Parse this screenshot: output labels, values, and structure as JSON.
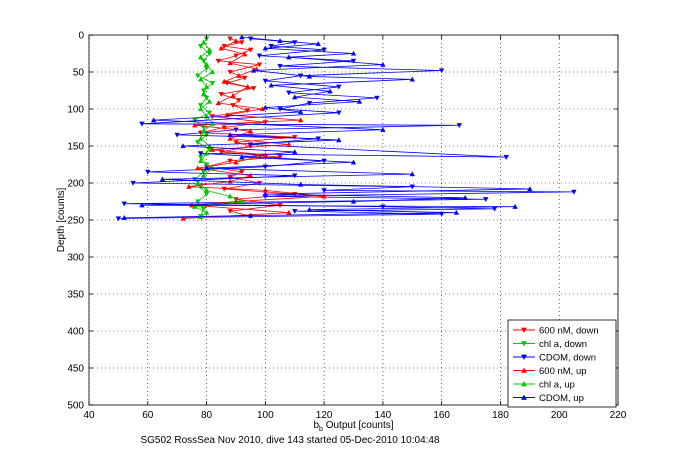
{
  "chart_data": {
    "type": "scatter",
    "title": "",
    "caption": "SG502 RossSea Nov 2010, dive 143 started 05-Dec-2010 10:04:48",
    "xlabel": "b",
    "xlabel_sub": "b",
    "xlabel_rest": " Output [counts]",
    "ylabel": "Depth [counts]",
    "xlim": [
      40,
      220
    ],
    "ylim": [
      0,
      500
    ],
    "y_reversed": true,
    "grid": true,
    "x_ticks": [
      "40",
      "60",
      "80",
      "100",
      "120",
      "140",
      "160",
      "180",
      "200",
      "220"
    ],
    "y_ticks": [
      "0",
      "50",
      "100",
      "150",
      "200",
      "250",
      "300",
      "350",
      "400",
      "450",
      "500"
    ],
    "legend_position": "bottom-right",
    "series": [
      {
        "name": "600 nM, down",
        "color": "#ff0000",
        "marker": "triangle-down",
        "points": [
          [
            88,
            5
          ],
          [
            92,
            10
          ],
          [
            86,
            15
          ],
          [
            95,
            20
          ],
          [
            90,
            28
          ],
          [
            84,
            35
          ],
          [
            98,
            40
          ],
          [
            88,
            50
          ],
          [
            93,
            58
          ],
          [
            87,
            65
          ],
          [
            96,
            72
          ],
          [
            85,
            80
          ],
          [
            91,
            88
          ],
          [
            89,
            95
          ],
          [
            94,
            102
          ],
          [
            82,
            110
          ],
          [
            100,
            118
          ],
          [
            86,
            125
          ],
          [
            78,
            132
          ],
          [
            110,
            138
          ],
          [
            90,
            145
          ],
          [
            95,
            150
          ],
          [
            85,
            158
          ],
          [
            105,
            165
          ],
          [
            88,
            170
          ],
          [
            80,
            178
          ],
          [
            92,
            185
          ],
          [
            88,
            192
          ],
          [
            98,
            200
          ],
          [
            86,
            208
          ],
          [
            110,
            215
          ],
          [
            90,
            222
          ],
          [
            105,
            230
          ],
          [
            88,
            238
          ],
          [
            95,
            245
          ]
        ]
      },
      {
        "name": "chl a, down",
        "color": "#00c800",
        "marker": "triangle-down",
        "points": [
          [
            80,
            5
          ],
          [
            78,
            15
          ],
          [
            81,
            25
          ],
          [
            79,
            35
          ],
          [
            80,
            45
          ],
          [
            77,
            55
          ],
          [
            82,
            65
          ],
          [
            79,
            75
          ],
          [
            80,
            85
          ],
          [
            78,
            95
          ],
          [
            81,
            105
          ],
          [
            76,
            115
          ],
          [
            79,
            125
          ],
          [
            80,
            135
          ],
          [
            77,
            145
          ],
          [
            81,
            155
          ],
          [
            78,
            165
          ],
          [
            80,
            175
          ],
          [
            79,
            185
          ],
          [
            76,
            195
          ],
          [
            78,
            205
          ],
          [
            80,
            215
          ],
          [
            77,
            225
          ],
          [
            79,
            235
          ],
          [
            78,
            245
          ]
        ]
      },
      {
        "name": "CDOM, down",
        "color": "#0000ff",
        "marker": "triangle-down",
        "points": [
          [
            95,
            5
          ],
          [
            110,
            10
          ],
          [
            102,
            15
          ],
          [
            120,
            20
          ],
          [
            98,
            28
          ],
          [
            130,
            35
          ],
          [
            105,
            42
          ],
          [
            160,
            48
          ],
          [
            112,
            55
          ],
          [
            100,
            62
          ],
          [
            125,
            70
          ],
          [
            108,
            78
          ],
          [
            138,
            85
          ],
          [
            115,
            92
          ],
          [
            105,
            100
          ],
          [
            125,
            105
          ],
          [
            58,
            120
          ],
          [
            166,
            122
          ],
          [
            90,
            128
          ],
          [
            70,
            135
          ],
          [
            118,
            140
          ],
          [
            95,
            148
          ],
          [
            182,
            165
          ],
          [
            78,
            160
          ],
          [
            120,
            170
          ],
          [
            100,
            178
          ],
          [
            60,
            185
          ],
          [
            110,
            190
          ],
          [
            55,
            200
          ],
          [
            150,
            205
          ],
          [
            120,
            210
          ],
          [
            205,
            212
          ],
          [
            100,
            218
          ],
          [
            175,
            222
          ],
          [
            52,
            228
          ],
          [
            140,
            232
          ],
          [
            178,
            235
          ],
          [
            110,
            238
          ],
          [
            160,
            242
          ],
          [
            50,
            248
          ]
        ]
      },
      {
        "name": "600 nM, up",
        "color": "#ff0000",
        "marker": "triangle-up",
        "points": [
          [
            90,
            8
          ],
          [
            85,
            18
          ],
          [
            93,
            26
          ],
          [
            88,
            38
          ],
          [
            97,
            46
          ],
          [
            91,
            55
          ],
          [
            86,
            63
          ],
          [
            94,
            70
          ],
          [
            89,
            82
          ],
          [
            84,
            92
          ],
          [
            99,
            100
          ],
          [
            87,
            108
          ],
          [
            112,
            115
          ],
          [
            76,
            122
          ],
          [
            95,
            130
          ],
          [
            88,
            140
          ],
          [
            108,
            148
          ],
          [
            82,
            155
          ],
          [
            100,
            162
          ],
          [
            90,
            172
          ],
          [
            77,
            180
          ],
          [
            95,
            190
          ],
          [
            88,
            198
          ],
          [
            74,
            205
          ],
          [
            100,
            210
          ],
          [
            120,
            218
          ],
          [
            90,
            225
          ],
          [
            75,
            230
          ],
          [
            108,
            240
          ],
          [
            72,
            248
          ]
        ]
      },
      {
        "name": "chl a, up",
        "color": "#00c800",
        "marker": "triangle-up",
        "points": [
          [
            79,
            10
          ],
          [
            81,
            20
          ],
          [
            78,
            30
          ],
          [
            80,
            40
          ],
          [
            82,
            50
          ],
          [
            78,
            60
          ],
          [
            80,
            70
          ],
          [
            79,
            80
          ],
          [
            81,
            90
          ],
          [
            78,
            100
          ],
          [
            80,
            110
          ],
          [
            82,
            120
          ],
          [
            79,
            130
          ],
          [
            78,
            140
          ],
          [
            81,
            150
          ],
          [
            80,
            160
          ],
          [
            78,
            170
          ],
          [
            82,
            180
          ],
          [
            79,
            190
          ],
          [
            77,
            200
          ],
          [
            80,
            210
          ],
          [
            88,
            218
          ],
          [
            92,
            225
          ],
          [
            76,
            232
          ],
          [
            80,
            240
          ],
          [
            78,
            246
          ]
        ]
      },
      {
        "name": "CDOM, up",
        "color": "#0000ff",
        "marker": "triangle-up",
        "points": [
          [
            92,
            3
          ],
          [
            105,
            8
          ],
          [
            118,
            12
          ],
          [
            100,
            18
          ],
          [
            130,
            25
          ],
          [
            108,
            30
          ],
          [
            140,
            40
          ],
          [
            96,
            48
          ],
          [
            115,
            56
          ],
          [
            150,
            60
          ],
          [
            102,
            68
          ],
          [
            122,
            76
          ],
          [
            110,
            84
          ],
          [
            132,
            90
          ],
          [
            100,
            98
          ],
          [
            112,
            104
          ],
          [
            62,
            115
          ],
          [
            140,
            128
          ],
          [
            88,
            135
          ],
          [
            125,
            142
          ],
          [
            72,
            150
          ],
          [
            110,
            158
          ],
          [
            92,
            165
          ],
          [
            130,
            172
          ],
          [
            80,
            180
          ],
          [
            150,
            188
          ],
          [
            65,
            195
          ],
          [
            112,
            202
          ],
          [
            190,
            208
          ],
          [
            100,
            215
          ],
          [
            168,
            220
          ],
          [
            130,
            225
          ],
          [
            58,
            230
          ],
          [
            185,
            232
          ],
          [
            115,
            236
          ],
          [
            165,
            240
          ],
          [
            95,
            244
          ],
          [
            52,
            247
          ]
        ]
      }
    ]
  }
}
